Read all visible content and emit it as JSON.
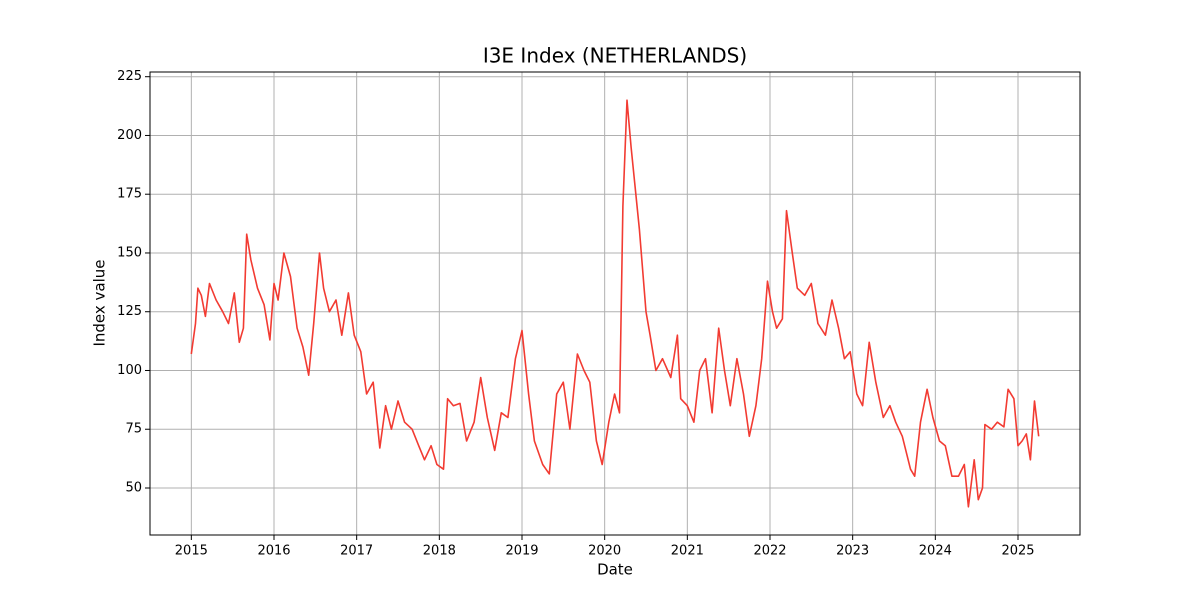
{
  "chart_data": {
    "type": "line",
    "title": "I3E Index (NETHERLANDS)",
    "x_label": "Date",
    "y_label": "Index value",
    "x": [
      2015.0,
      2015.05,
      2015.08,
      2015.12,
      2015.17,
      2015.22,
      2015.3,
      2015.38,
      2015.45,
      2015.52,
      2015.58,
      2015.63,
      2015.67,
      2015.72,
      2015.8,
      2015.88,
      2015.95,
      2016.0,
      2016.05,
      2016.12,
      2016.2,
      2016.28,
      2016.35,
      2016.42,
      2016.48,
      2016.55,
      2016.6,
      2016.67,
      2016.75,
      2016.82,
      2016.9,
      2016.97,
      2017.05,
      2017.12,
      2017.2,
      2017.28,
      2017.35,
      2017.42,
      2017.5,
      2017.58,
      2017.67,
      2017.75,
      2017.82,
      2017.9,
      2017.97,
      2018.05,
      2018.1,
      2018.17,
      2018.25,
      2018.33,
      2018.42,
      2018.5,
      2018.58,
      2018.67,
      2018.75,
      2018.83,
      2018.92,
      2019.0,
      2019.08,
      2019.15,
      2019.25,
      2019.33,
      2019.42,
      2019.5,
      2019.58,
      2019.67,
      2019.75,
      2019.82,
      2019.9,
      2019.97,
      2020.05,
      2020.12,
      2020.18,
      2020.22,
      2020.27,
      2020.32,
      2020.42,
      2020.5,
      2020.55,
      2020.62,
      2020.7,
      2020.8,
      2020.88,
      2020.92,
      2021.0,
      2021.08,
      2021.15,
      2021.22,
      2021.3,
      2021.38,
      2021.45,
      2021.52,
      2021.6,
      2021.68,
      2021.75,
      2021.83,
      2021.9,
      2021.97,
      2022.03,
      2022.08,
      2022.15,
      2022.2,
      2022.27,
      2022.33,
      2022.42,
      2022.5,
      2022.58,
      2022.67,
      2022.75,
      2022.83,
      2022.9,
      2022.97,
      2023.05,
      2023.12,
      2023.2,
      2023.28,
      2023.37,
      2023.45,
      2023.52,
      2023.6,
      2023.7,
      2023.75,
      2023.82,
      2023.9,
      2023.97,
      2024.05,
      2024.12,
      2024.2,
      2024.28,
      2024.35,
      2024.4,
      2024.47,
      2024.52,
      2024.57,
      2024.6,
      2024.68,
      2024.75,
      2024.83,
      2024.88,
      2024.95,
      2025.0,
      2025.05,
      2025.1,
      2025.15,
      2025.2,
      2025.25
    ],
    "series": [
      {
        "name": "I3E Index",
        "color": "#f23b32",
        "values": [
          107,
          120,
          135,
          132,
          123,
          137,
          130,
          125,
          120,
          133,
          112,
          118,
          158,
          147,
          135,
          128,
          113,
          137,
          130,
          150,
          140,
          118,
          110,
          98,
          120,
          150,
          135,
          125,
          130,
          115,
          133,
          115,
          108,
          90,
          95,
          67,
          85,
          75,
          87,
          78,
          75,
          68,
          62,
          68,
          60,
          58,
          88,
          85,
          86,
          70,
          78,
          97,
          80,
          66,
          82,
          80,
          105,
          117,
          90,
          70,
          60,
          56,
          90,
          95,
          75,
          107,
          100,
          95,
          70,
          60,
          78,
          90,
          82,
          170,
          215,
          195,
          160,
          125,
          115,
          100,
          105,
          97,
          115,
          88,
          85,
          78,
          100,
          105,
          82,
          118,
          100,
          85,
          105,
          90,
          72,
          85,
          105,
          138,
          125,
          118,
          122,
          168,
          150,
          135,
          132,
          137,
          120,
          115,
          130,
          118,
          105,
          108,
          90,
          85,
          112,
          95,
          80,
          85,
          78,
          72,
          58,
          55,
          78,
          92,
          80,
          70,
          68,
          55,
          55,
          60,
          42,
          62,
          45,
          50,
          77,
          75,
          78,
          76,
          92,
          88,
          68,
          70,
          73,
          62,
          87,
          72
        ]
      }
    ],
    "xlim": [
      2014.5,
      2025.75
    ],
    "xticks": [
      2015,
      2016,
      2017,
      2018,
      2019,
      2020,
      2021,
      2022,
      2023,
      2024,
      2025
    ],
    "ylim": [
      30,
      227
    ],
    "yticks": [
      50,
      75,
      100,
      125,
      150,
      175,
      200,
      225
    ],
    "grid": true
  }
}
